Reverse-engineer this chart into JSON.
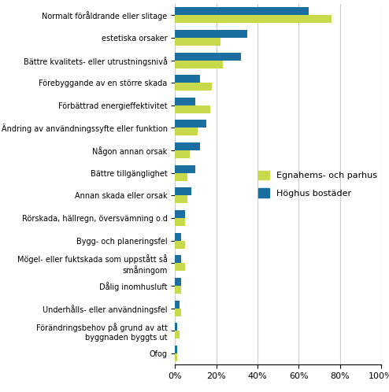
{
  "categories": [
    "Normalt föråldrande eller slitage",
    "estetiska orsaker",
    "Bättre kvalitets- eller utrustningsnivå",
    "Förebyggande av en större skada",
    "Förbättrad energieffektivitet",
    "Ändring av användningssyfte eller funktion",
    "Någon annan orsak",
    "Bättre tillgänglighet",
    "Annan skada eller orsak",
    "Rörskada, hällregn, översvämning o.d",
    "Bygg- och planeringsfel",
    "Mögel- eller fuktskada som uppstått så\nsmåningom",
    "Dålig inomhusluft",
    "Underhålls- eller användningsfel",
    "Förändringsbehov på grund av att\nbyggnaden byggts ut",
    "Ofog"
  ],
  "egnahems_values": [
    76,
    22,
    23,
    18,
    17,
    11,
    7,
    6,
    6,
    5,
    5,
    5,
    3,
    3,
    2,
    1
  ],
  "hoghus_values": [
    65,
    35,
    32,
    12,
    10,
    15,
    12,
    10,
    8,
    5,
    3,
    3,
    3,
    2,
    1,
    1
  ],
  "egnahems_color": "#c8d94c",
  "hoghus_color": "#1a6fa0",
  "legend_egnahems": "Egnahems- och parhus",
  "legend_hoghus": "Höghus bostäder",
  "xlim": [
    0,
    100
  ],
  "xtick_labels": [
    "0%",
    "20%",
    "40%",
    "60%",
    "80%",
    "100%"
  ],
  "xtick_values": [
    0,
    20,
    40,
    60,
    80,
    100
  ],
  "background_color": "#ffffff",
  "grid_color": "#cccccc"
}
